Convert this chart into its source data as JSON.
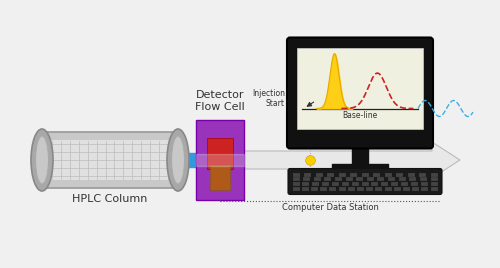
{
  "bg_color": "#f0f0f0",
  "hplc_label": "HPLC Column",
  "detector_label": "Detector\nFlow Cell",
  "injection_label": "Injection\nStart",
  "baseline_label": "Base-line",
  "computer_label": "Computer Data Station",
  "blue_band_color": "#3399dd",
  "det_color": "#9933bb",
  "det_red_color": "#cc2222",
  "det_brown_color": "#b05a1a",
  "yellow_dot_color": "#ffcc00",
  "peak1_color": "#ffcc00",
  "peak2_color": "#cc2222",
  "wave_color": "#44aadd",
  "arrow_fill": "#e8e8e8",
  "arrow_edge": "#bbbbbb"
}
